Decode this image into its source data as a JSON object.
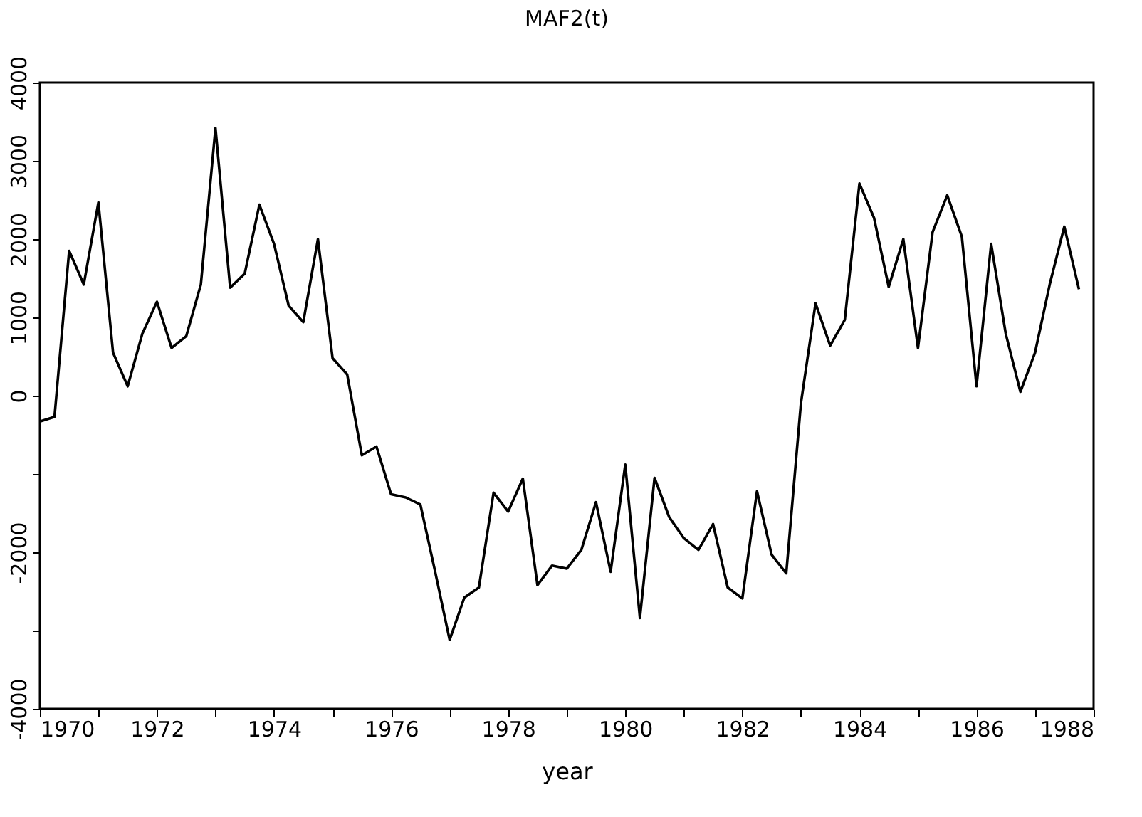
{
  "chart_data": {
    "type": "line",
    "title": "MAF2(t)",
    "xlabel": "year",
    "x": [
      1970,
      1970.25,
      1970.5,
      1970.75,
      1971,
      1971.25,
      1971.5,
      1971.75,
      1972,
      1972.25,
      1972.5,
      1972.75,
      1973,
      1973.25,
      1973.5,
      1973.75,
      1974,
      1974.25,
      1974.5,
      1974.75,
      1975,
      1975.25,
      1975.5,
      1975.75,
      1976,
      1976.25,
      1976.5,
      1976.75,
      1977,
      1977.25,
      1977.5,
      1977.75,
      1978,
      1978.25,
      1978.5,
      1978.75,
      1979,
      1979.25,
      1979.5,
      1979.75,
      1980,
      1980.25,
      1980.5,
      1980.75,
      1981,
      1981.25,
      1981.5,
      1981.75,
      1982,
      1982.25,
      1982.5,
      1982.75,
      1983,
      1983.25,
      1983.5,
      1983.75,
      1984,
      1984.25,
      1984.5,
      1984.75,
      1985,
      1985.25,
      1985.5,
      1985.75,
      1986,
      1986.25,
      1986.5,
      1986.75,
      1987,
      1987.25,
      1987.5,
      1987.75
    ],
    "series": [
      {
        "color": "#000000",
        "values": [
          -330,
          -270,
          1850,
          1420,
          2470,
          550,
          120,
          790,
          1200,
          610,
          760,
          1420,
          3420,
          1380,
          1560,
          2440,
          1940,
          1150,
          940,
          2000,
          480,
          270,
          -760,
          -650,
          -1260,
          -1300,
          -1390,
          -2240,
          -3120,
          -2580,
          -2450,
          -1240,
          -1480,
          -1060,
          -2420,
          -2170,
          -2210,
          -1970,
          -1360,
          -2250,
          -880,
          -2840,
          -1050,
          -1550,
          -1820,
          -1970,
          -1640,
          -2450,
          -2590,
          -1220,
          -2030,
          -2270,
          -100,
          1180,
          640,
          970,
          2710,
          2270,
          1390,
          2000,
          610,
          2090,
          2560,
          2030,
          120,
          1940,
          790,
          50,
          550,
          1420,
          2160,
          1360
        ]
      }
    ],
    "xlim": [
      1970,
      1988
    ],
    "xticks": [
      1970,
      {
        "value": 1971,
        "label": null
      },
      1972,
      {
        "value": 1973,
        "label": null
      },
      1974,
      {
        "value": 1975,
        "label": null
      },
      1976,
      {
        "value": 1977,
        "label": null
      },
      1978,
      {
        "value": 1979,
        "label": null
      },
      1980,
      {
        "value": 1981,
        "label": null
      },
      1982,
      {
        "value": 1983,
        "label": null
      },
      1984,
      {
        "value": 1985,
        "label": null
      },
      1986,
      {
        "value": 1987,
        "label": null
      },
      1988
    ],
    "ylim": [
      -4000,
      4000
    ],
    "yticks": [
      -4000,
      {
        "value": -3000,
        "label": null
      },
      -2000,
      {
        "value": -1000,
        "label": null
      },
      0,
      1000,
      2000,
      3000,
      4000
    ],
    "grid": false,
    "marker": "none",
    "line_style": "solid"
  }
}
